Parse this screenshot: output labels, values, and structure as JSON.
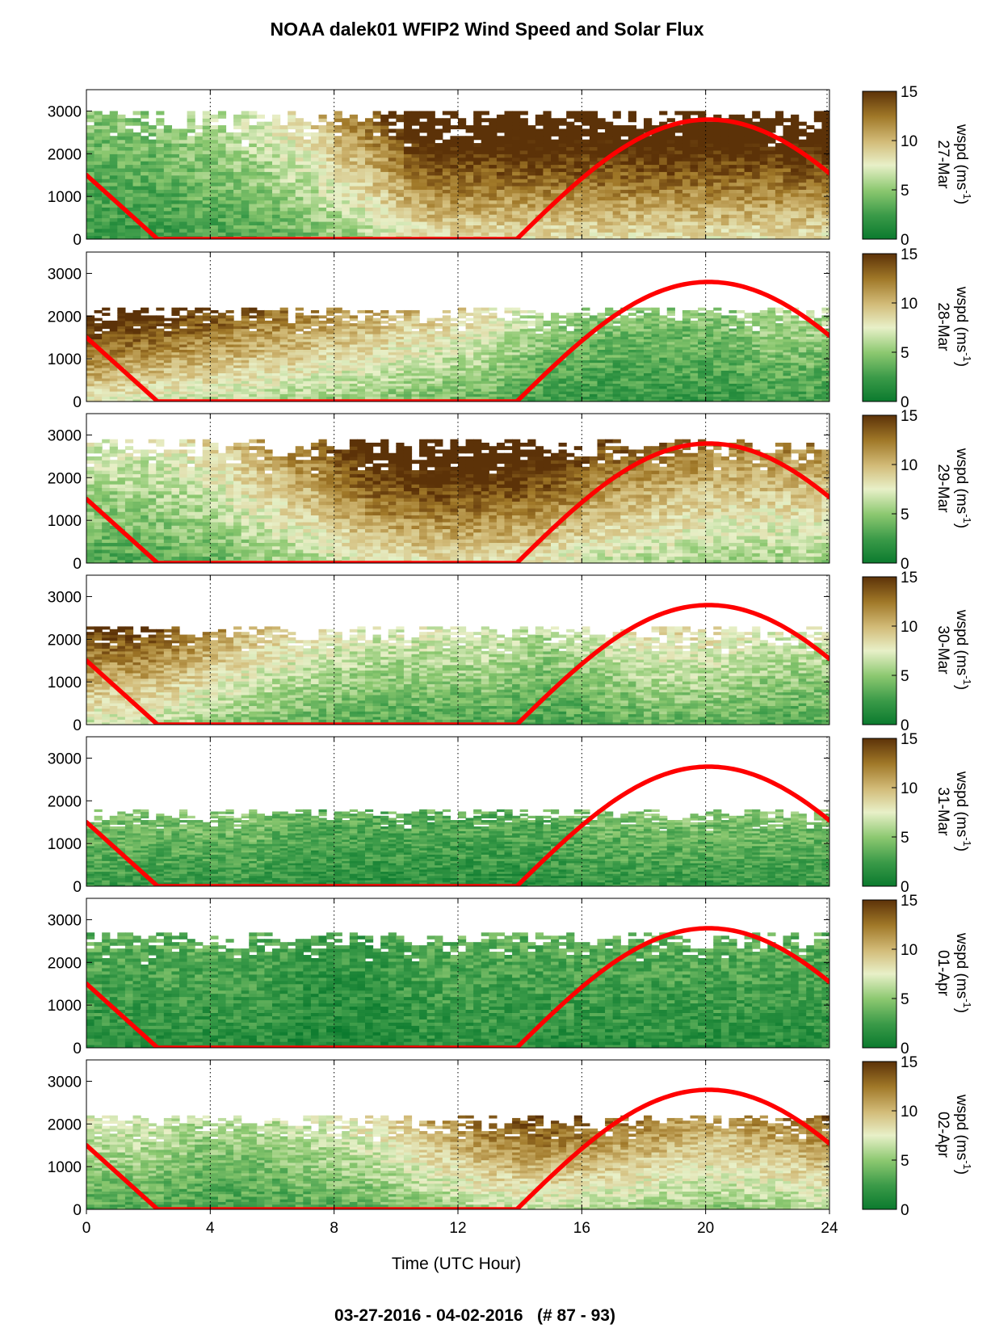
{
  "title": "NOAA dalek01 WFIP2 Wind Speed and Solar Flux",
  "footer": "03-27-2016 - 04-02-2016   (# 87 - 93)",
  "chart_data": {
    "type": "heatmap",
    "xlabel": "Time (UTC Hour)",
    "xlim": [
      0,
      24
    ],
    "x_ticks": [
      "0",
      "4",
      "8",
      "12",
      "16",
      "20",
      "24"
    ],
    "ylim": [
      0,
      3500
    ],
    "y_ticks": [
      "0",
      "1000",
      "2000",
      "3000"
    ],
    "colorbar": {
      "label_prefix": "wspd (ms",
      "label_exp": "-1",
      "label_suffix": ")",
      "range": [
        0,
        15
      ],
      "ticks": [
        "0",
        "5",
        "10",
        "15"
      ],
      "colors": [
        "#0b7a2e",
        "#3a9a48",
        "#8cc870",
        "#e8f0c8",
        "#d2bb78",
        "#a07828",
        "#5c3208"
      ]
    },
    "grid": "dotted vertical lines at 4, 8, 12, 16, 20",
    "solar_flux_curve": {
      "color": "#ff0000",
      "descending_segment": [
        [
          0,
          1500
        ],
        [
          2.3,
          0
        ]
      ],
      "zero_segment": [
        [
          2.3,
          0
        ],
        [
          13.9,
          0
        ]
      ],
      "arc": {
        "start_hour": 13.9,
        "peak_hour": 20.1,
        "peak_height": 2800,
        "end_hour": 24,
        "end_height": 1680
      }
    },
    "panels": [
      {
        "date": "27-Mar",
        "speed_profile": [
          4,
          4,
          5,
          6,
          8,
          11,
          15,
          15,
          15,
          15,
          15,
          15,
          15,
          15
        ],
        "top_height": 3000
      },
      {
        "date": "28-Mar",
        "speed_profile": [
          14,
          13,
          12,
          11,
          10,
          9,
          8,
          7,
          5,
          4,
          4,
          4,
          5,
          5
        ],
        "top_height": 2200
      },
      {
        "date": "29-Mar",
        "speed_profile": [
          6,
          6,
          7,
          9,
          11,
          14,
          15,
          15,
          14,
          12,
          11,
          10,
          10,
          10
        ],
        "top_height": 2900
      },
      {
        "date": "30-Mar",
        "speed_profile": [
          12,
          12,
          10,
          8,
          7,
          6,
          6,
          6,
          5,
          6,
          7,
          7,
          6,
          6
        ],
        "top_height": 2300
      },
      {
        "date": "31-Mar",
        "speed_profile": [
          4,
          4,
          4,
          4,
          3,
          3,
          3,
          3,
          3,
          4,
          4,
          4,
          4,
          4
        ],
        "top_height": 1800
      },
      {
        "date": "01-Apr",
        "speed_profile": [
          3,
          3,
          3,
          3,
          2,
          2,
          3,
          3,
          3,
          3,
          3,
          3,
          3,
          3
        ],
        "top_height": 2700
      },
      {
        "date": "02-Apr",
        "speed_profile": [
          6,
          6,
          5,
          5,
          6,
          7,
          9,
          11,
          12,
          11,
          10,
          9,
          10,
          11
        ],
        "top_height": 2200
      }
    ]
  }
}
